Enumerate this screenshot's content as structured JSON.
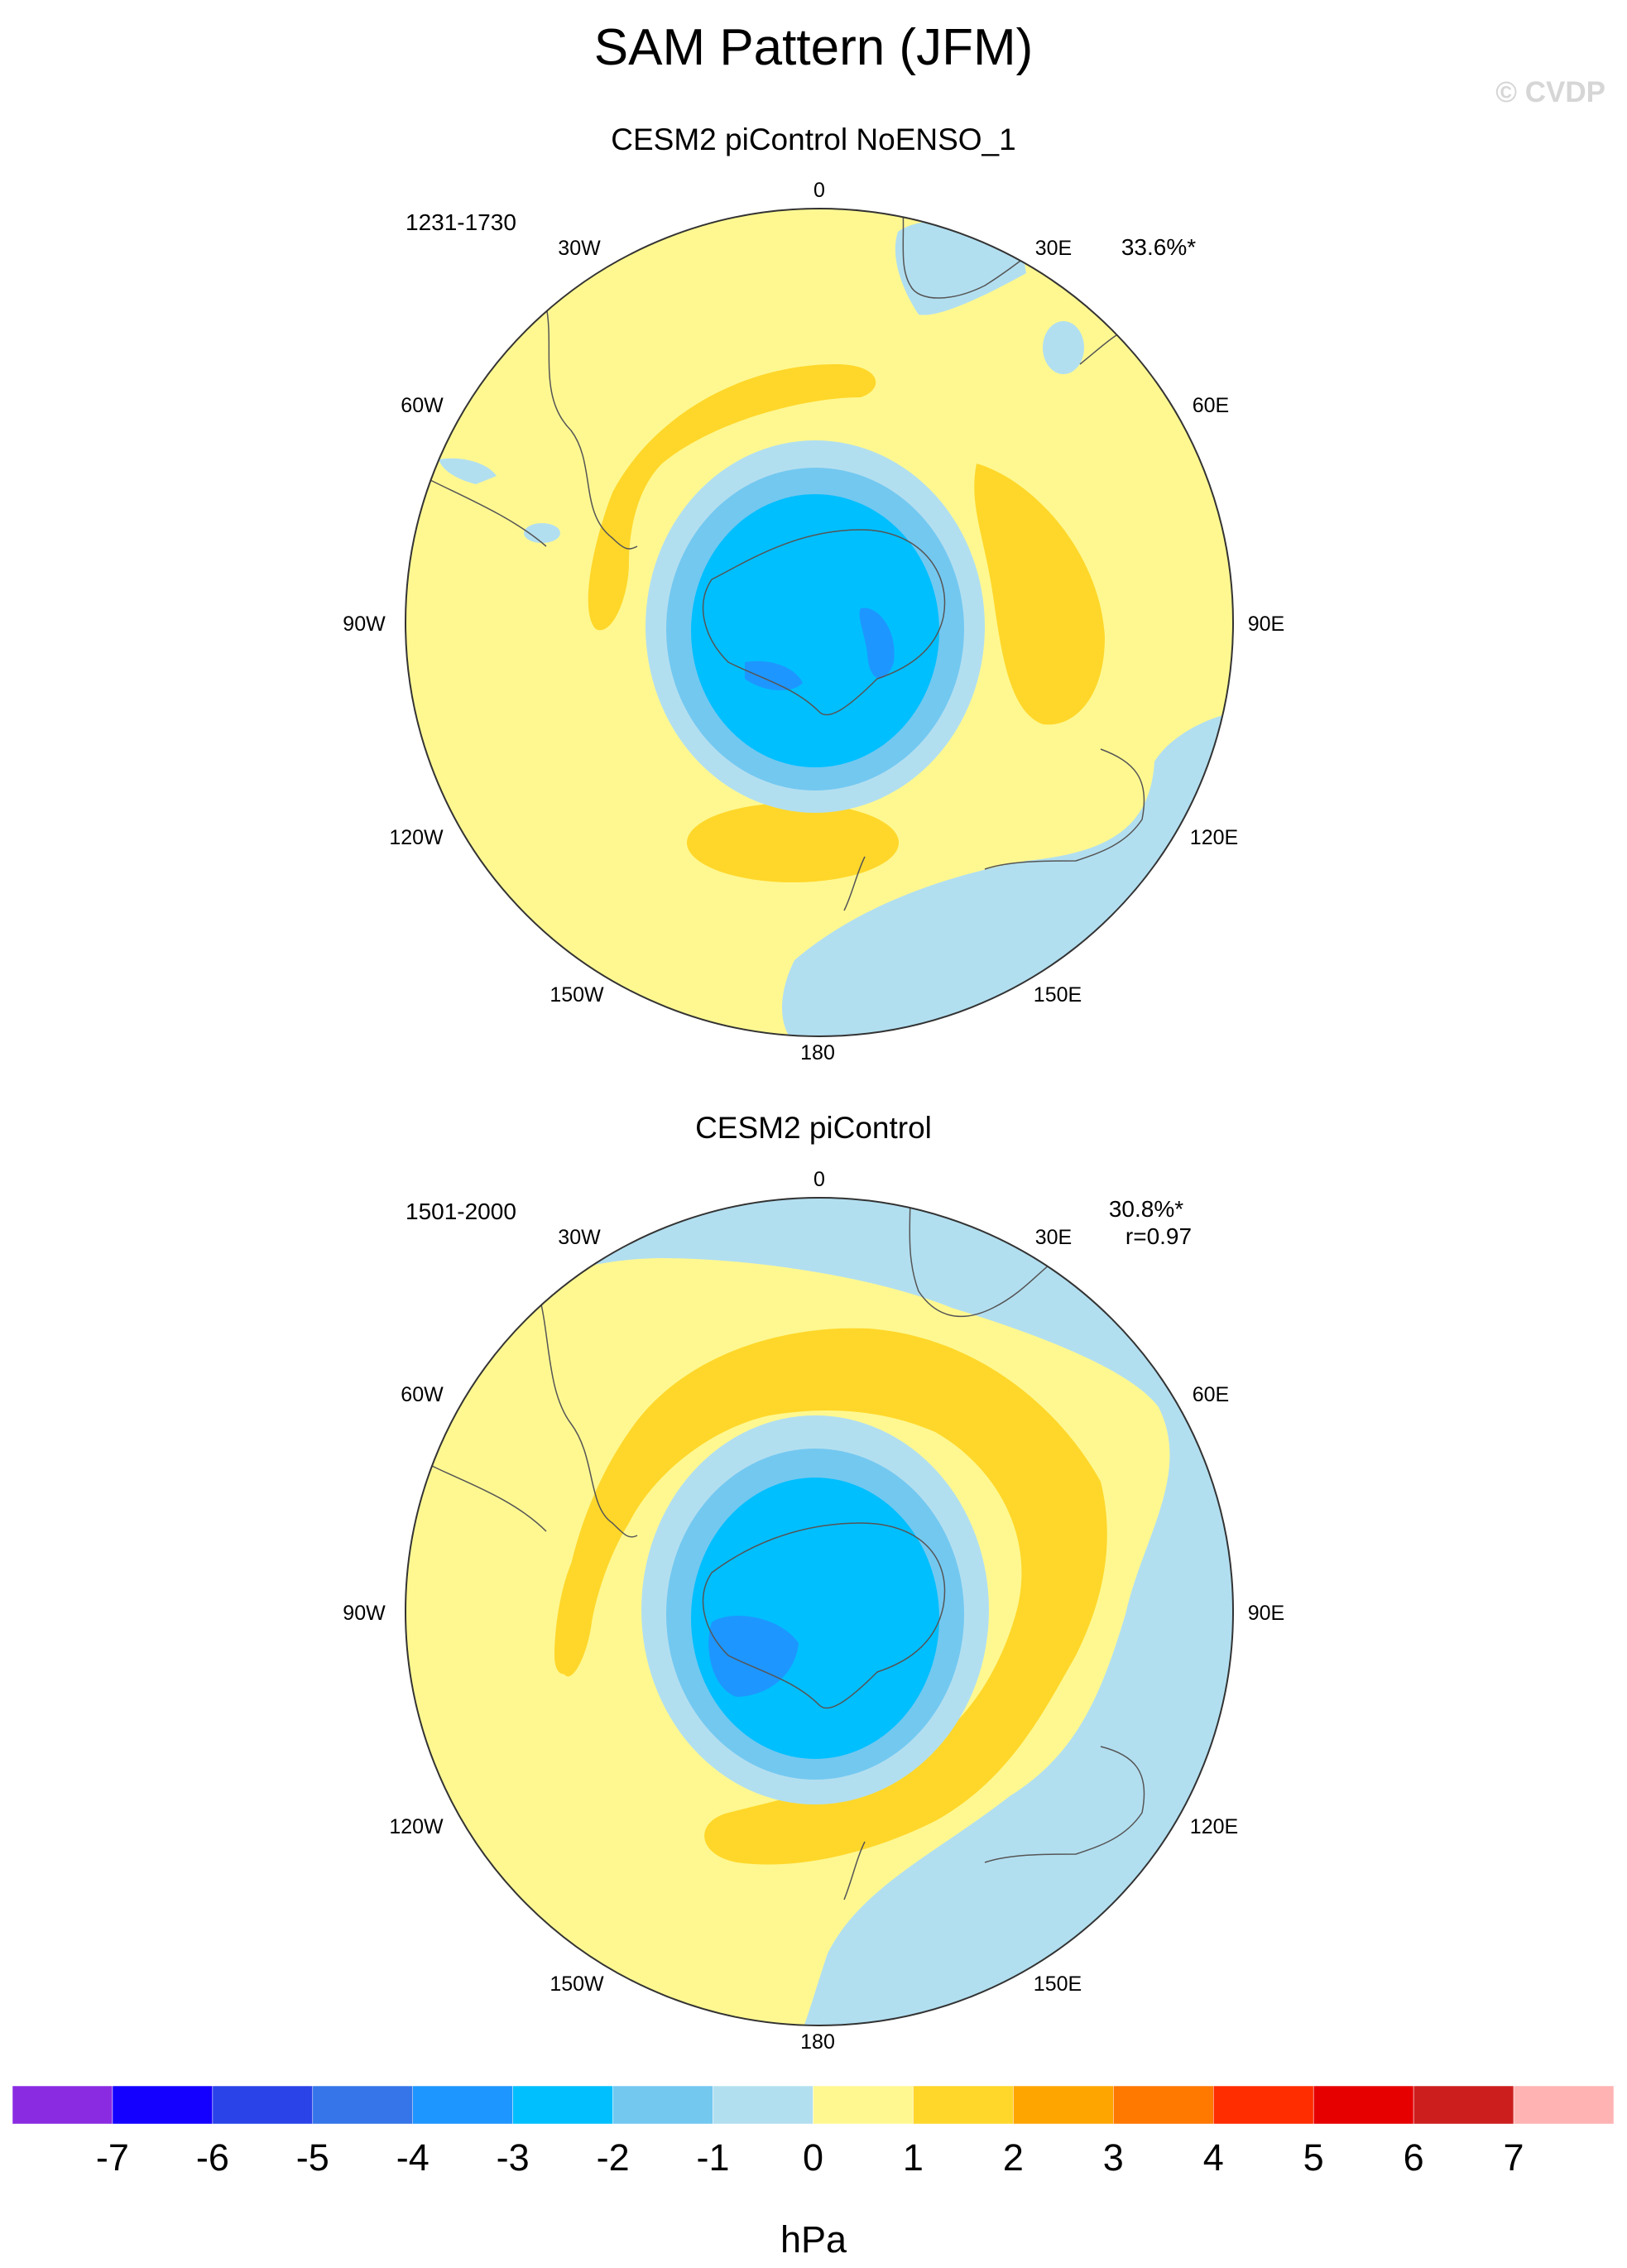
{
  "title": "SAM Pattern (JFM)",
  "watermark": "© CVDP",
  "panels": [
    {
      "subtitle": "CESM2 piControl NoENSO_1",
      "years": "1231-1730",
      "pct_variance": "33.6%*",
      "pattern_corr": ""
    },
    {
      "subtitle": "CESM2 piControl",
      "years": "1501-2000",
      "pct_variance": "30.8%*",
      "pattern_corr": "r=0.97"
    }
  ],
  "longitude_labels": [
    "0",
    "30E",
    "60E",
    "90E",
    "120E",
    "150E",
    "180",
    "150W",
    "120W",
    "90W",
    "60W",
    "30W"
  ],
  "colorbar": {
    "unit": "hPa",
    "ticks": [
      "-7",
      "-6",
      "-5",
      "-4",
      "-3",
      "-2",
      "-1",
      "0",
      "1",
      "2",
      "3",
      "4",
      "5",
      "6",
      "7"
    ],
    "colors": [
      "#8a2be2",
      "#1400ff",
      "#2a43e8",
      "#3575e9",
      "#1e96ff",
      "#00bfff",
      "#73c8f0",
      "#b2dff0",
      "#fff891",
      "#ffd72a",
      "#ffa500",
      "#ff7800",
      "#ff2d00",
      "#e60000",
      "#cd1e1e",
      "#ffb3b3"
    ]
  }
}
